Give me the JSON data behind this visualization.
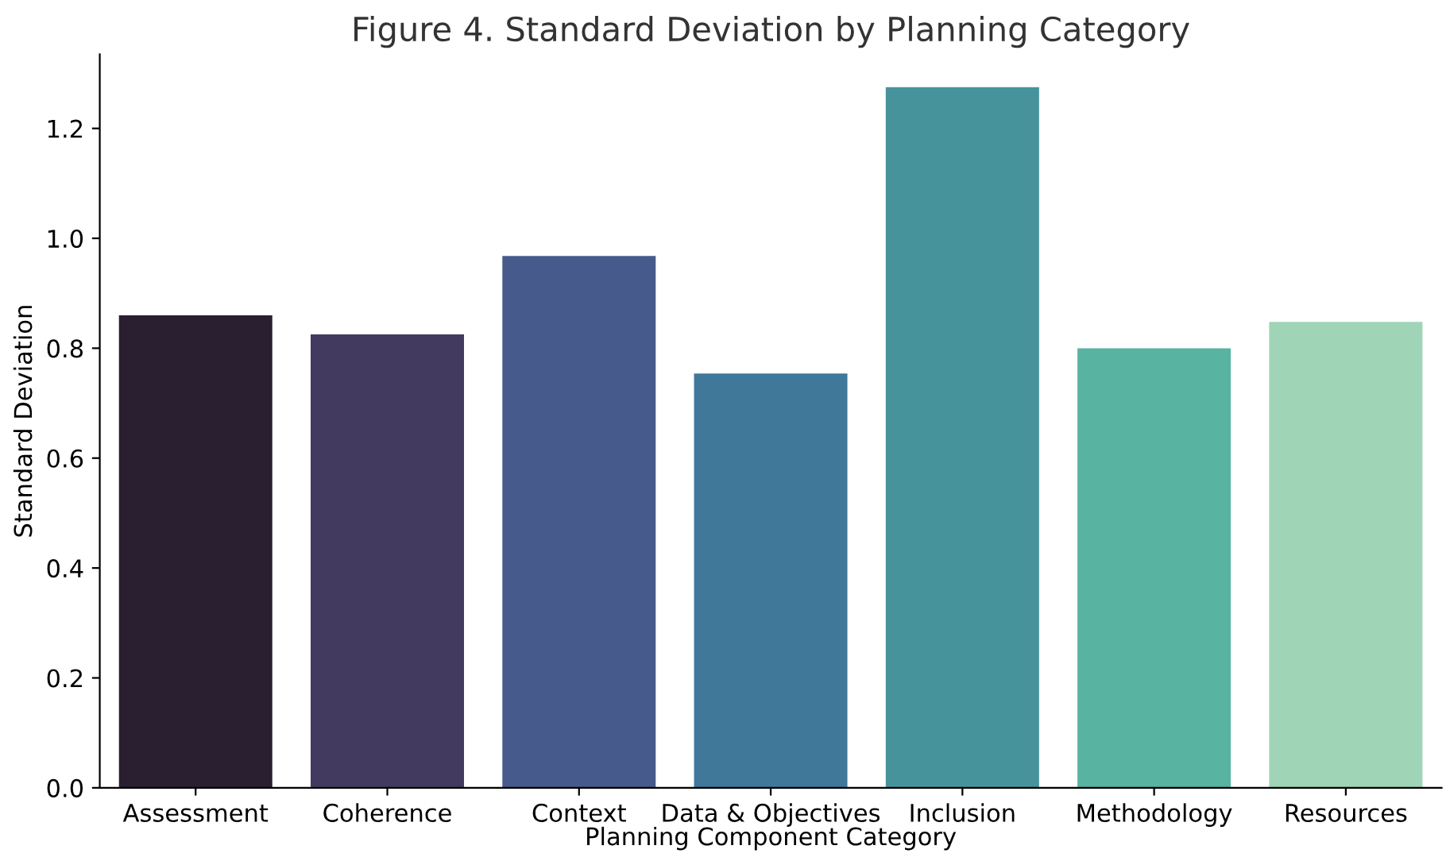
{
  "chart_data": {
    "type": "bar",
    "title": "Figure 4. Standard Deviation by Planning Category",
    "xlabel": "Planning Component Category",
    "ylabel": "Standard Deviation",
    "categories": [
      "Assessment",
      "Coherence",
      "Context",
      "Data & Objectives",
      "Inclusion",
      "Methodology",
      "Resources"
    ],
    "values": [
      0.86,
      0.825,
      0.968,
      0.754,
      1.275,
      0.8,
      0.848
    ],
    "colors": [
      "#2a1f30",
      "#433a5f",
      "#465b8c",
      "#40789a",
      "#46939b",
      "#58b3a0",
      "#a0d4b7"
    ],
    "ylim": [
      0,
      1.335
    ],
    "yticks": [
      {
        "value": 0,
        "label": "0.0"
      },
      0.2,
      0.4,
      0.6,
      0.8,
      {
        "value": 1,
        "label": "1.0"
      },
      1.2
    ],
    "grid": false,
    "legend": false
  }
}
